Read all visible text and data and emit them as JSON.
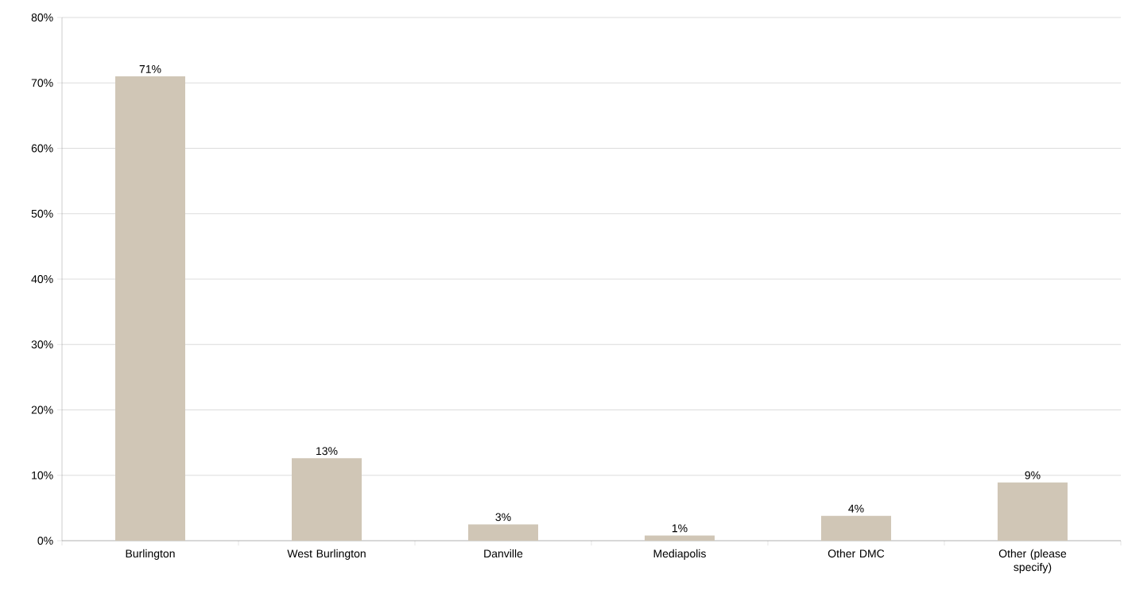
{
  "chart_data": {
    "type": "bar",
    "categories": [
      "Burlington",
      "West Burlington",
      "Danville",
      "Mediapolis",
      "Other DMC",
      "Other (please specify)"
    ],
    "values": [
      71,
      12.6,
      2.5,
      0.8,
      3.8,
      8.9
    ],
    "value_labels": [
      "71%",
      "13%",
      "3%",
      "1%",
      "4%",
      "9%"
    ],
    "color": "#d0c6b6",
    "ylim": [
      0,
      80
    ],
    "yticks": [
      {
        "value": 0,
        "label": "0%"
      },
      {
        "value": 10,
        "label": "10%"
      },
      {
        "value": 20,
        "label": "20%"
      },
      {
        "value": 30,
        "label": "30%"
      },
      {
        "value": 40,
        "label": "40%"
      },
      {
        "value": 50,
        "label": "50%"
      },
      {
        "value": 60,
        "label": "60%"
      },
      {
        "value": 70,
        "label": "70%"
      },
      {
        "value": 80,
        "label": "80%"
      }
    ],
    "grid": "y"
  }
}
